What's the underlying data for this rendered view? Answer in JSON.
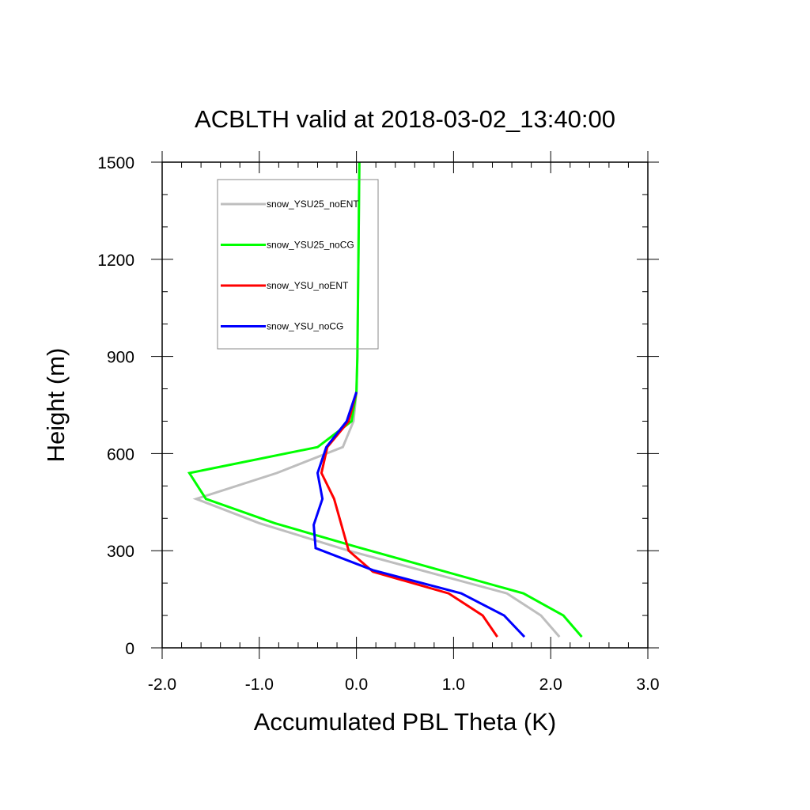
{
  "chart_data": {
    "type": "line",
    "title": "ACBLTH valid at 2018-03-02_13:40:00",
    "xlabel": "Accumulated PBL Theta (K)",
    "ylabel": "Height (m)",
    "xlim": [
      -2.0,
      3.0
    ],
    "ylim": [
      0,
      1500
    ],
    "xticks": [
      -2.0,
      -1.0,
      0.0,
      1.0,
      2.0,
      3.0
    ],
    "xtick_labels": [
      "-2.0",
      "-1.0",
      "0.0",
      "1.0",
      "2.0",
      "3.0"
    ],
    "yticks": [
      0,
      300,
      600,
      900,
      1200,
      1500
    ],
    "ytick_labels": [
      "0",
      "300",
      "600",
      "900",
      "1200",
      "1500"
    ],
    "grid": false,
    "legend_position": "top-left",
    "series": [
      {
        "name": "snow_YSU25_noENT",
        "color": "#bebebe",
        "points": [
          [
            2.09,
            34
          ],
          [
            1.9,
            100
          ],
          [
            1.55,
            168
          ],
          [
            -0.08,
            300
          ],
          [
            -1.0,
            385
          ],
          [
            -1.65,
            460
          ],
          [
            -0.82,
            540
          ],
          [
            -0.14,
            620
          ],
          [
            -0.03,
            700
          ],
          [
            0.0,
            790
          ],
          [
            0.01,
            900
          ],
          [
            0.02,
            1200
          ],
          [
            0.03,
            1500
          ]
        ]
      },
      {
        "name": "snow_YSU25_noCG",
        "color": "#00ff00",
        "points": [
          [
            2.32,
            34
          ],
          [
            2.13,
            100
          ],
          [
            1.72,
            168
          ],
          [
            0.0,
            312
          ],
          [
            -0.84,
            385
          ],
          [
            -1.55,
            460
          ],
          [
            -1.72,
            540
          ],
          [
            -0.4,
            620
          ],
          [
            -0.05,
            700
          ],
          [
            0.0,
            790
          ],
          [
            0.01,
            900
          ],
          [
            0.02,
            1200
          ],
          [
            0.03,
            1500
          ]
        ]
      },
      {
        "name": "snow_YSU_noENT",
        "color": "#ff0000",
        "points": [
          [
            1.45,
            34
          ],
          [
            1.3,
            100
          ],
          [
            0.95,
            168
          ],
          [
            0.17,
            235
          ],
          [
            -0.08,
            300
          ],
          [
            -0.23,
            460
          ],
          [
            -0.36,
            540
          ],
          [
            -0.3,
            620
          ],
          [
            -0.08,
            700
          ],
          [
            0.0,
            790
          ]
        ]
      },
      {
        "name": "snow_YSU_noCG",
        "color": "#0000ff",
        "points": [
          [
            1.73,
            34
          ],
          [
            1.52,
            100
          ],
          [
            1.08,
            168
          ],
          [
            0.17,
            240
          ],
          [
            -0.42,
            308
          ],
          [
            -0.44,
            380
          ],
          [
            -0.35,
            460
          ],
          [
            -0.4,
            540
          ],
          [
            -0.31,
            620
          ],
          [
            -0.1,
            700
          ],
          [
            0.0,
            790
          ]
        ]
      }
    ]
  }
}
